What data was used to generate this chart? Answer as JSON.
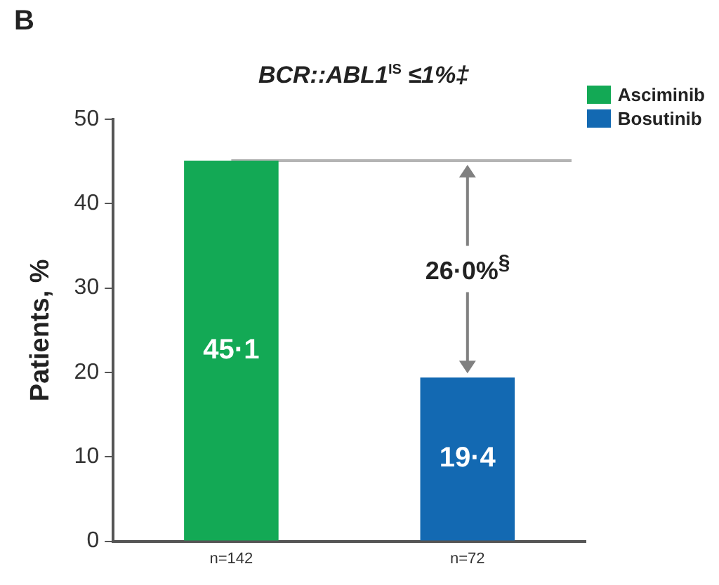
{
  "chart_data": {
    "type": "bar",
    "title": "BCR::ABL1$^{IS}$ ≤1%‡",
    "ylabel": "Patients, %",
    "categories": [
      "n=142",
      "n=72"
    ],
    "series": [
      {
        "name": "Asciminib",
        "color": "#13a955",
        "values": [
          45.1,
          null
        ],
        "value_labels": [
          "45·1",
          null
        ]
      },
      {
        "name": "Bosutinib",
        "color": "#1369b2",
        "values": [
          null,
          19.4
        ],
        "value_labels": [
          null,
          "19·4"
        ]
      }
    ],
    "ylim": [
      0,
      50
    ],
    "yticks": [
      0,
      10,
      20,
      30,
      40,
      50
    ],
    "grid": false,
    "legend": "top right",
    "ref_lines": [
      {
        "axis": "y",
        "value": 45.1,
        "color": "#b4b4b4"
      }
    ],
    "annotations": [
      "B",
      "26·0%$^{§}$"
    ]
  }
}
